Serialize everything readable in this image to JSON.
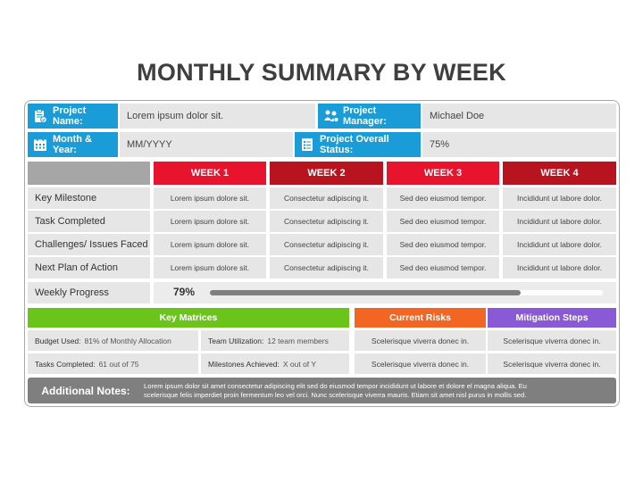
{
  "title": "MONTHLY SUMMARY BY WEEK",
  "header": {
    "project_name_label": "Project Name:",
    "project_name_value": "Lorem ipsum dolor sit.",
    "project_manager_label": "Project Manager:",
    "project_manager_value": "Michael Doe",
    "month_year_label": "Month & Year:",
    "month_year_value": "MM/YYYY",
    "overall_status_label": "Project Overall Status:",
    "overall_status_value": "75%"
  },
  "weeks": [
    "WEEK 1",
    "WEEK 2",
    "WEEK 3",
    "WEEK 4"
  ],
  "rows": [
    {
      "label": "Key Milestone",
      "cells": [
        "Lorem ipsum dolore sit.",
        "Consectetur adipiscing it.",
        "Sed deo eiusmod tempor.",
        "Incididunt ut labore dolor."
      ]
    },
    {
      "label": "Task Completed",
      "cells": [
        "Lorem ipsum dolore sit.",
        "Consectetur adipiscing it.",
        "Sed deo eiusmod tempor.",
        "Incididunt ut labore dolor."
      ]
    },
    {
      "label": "Challenges/ Issues Faced",
      "cells": [
        "Lorem ipsum dolore sit.",
        "Consectetur adipiscing it.",
        "Sed deo eiusmod tempor.",
        "Incididunt ut labore dolor."
      ]
    },
    {
      "label": "Next Plan of Action",
      "cells": [
        "Lorem ipsum dolore sit.",
        "Consectetur adipiscing it.",
        "Sed deo eiusmod tempor.",
        "Incididunt ut labore dolor."
      ]
    }
  ],
  "progress": {
    "label": "Weekly Progress",
    "value_text": "79%",
    "fraction": 0.79
  },
  "key_matrices": {
    "title": "Key Matrices",
    "budget_label": "Budget Used:",
    "budget_value": "81% of Monthly Allocation",
    "team_label": "Team Utilization:",
    "team_value": "12 team members",
    "tasks_label": "Tasks Completed:",
    "tasks_value": "61 out of 75",
    "milestones_label": "Milestones Achieved:",
    "milestones_value": "X out of Y"
  },
  "risks": {
    "title": "Current Risks",
    "items": [
      "Scelerisque viverra donec in.",
      "Scelerisque viverra donec in."
    ]
  },
  "mitigation": {
    "title": "Mitigation Steps",
    "items": [
      "Scelerisque viverra donec in.",
      "Scelerisque viverra donec in."
    ]
  },
  "notes": {
    "label": "Additional Notes:",
    "line1": "Lorem ipsum dolor sit amet consectetur adipiscing elit sed do eiusmod tempor incididunt ut labore et dolore el magna aliqua. Eu",
    "line2": "scelerisque felis imperdiet proin fermentum leo vel orci. Nunc scelerisque viverra mauris. Etiam sit amet nisl purus in mollis sed."
  },
  "colors": {
    "blue": "#1a9cd8",
    "week1": "#e8132d",
    "week2": "#b8141f",
    "week3": "#e8132d",
    "week4": "#b8141f",
    "green": "#6bc41a",
    "orange": "#f26522",
    "purple": "#8a59d6",
    "gray": "#7f7f7f"
  },
  "icons": [
    "clipboard-icon",
    "manager-icon",
    "calendar-icon",
    "checklist-icon"
  ]
}
